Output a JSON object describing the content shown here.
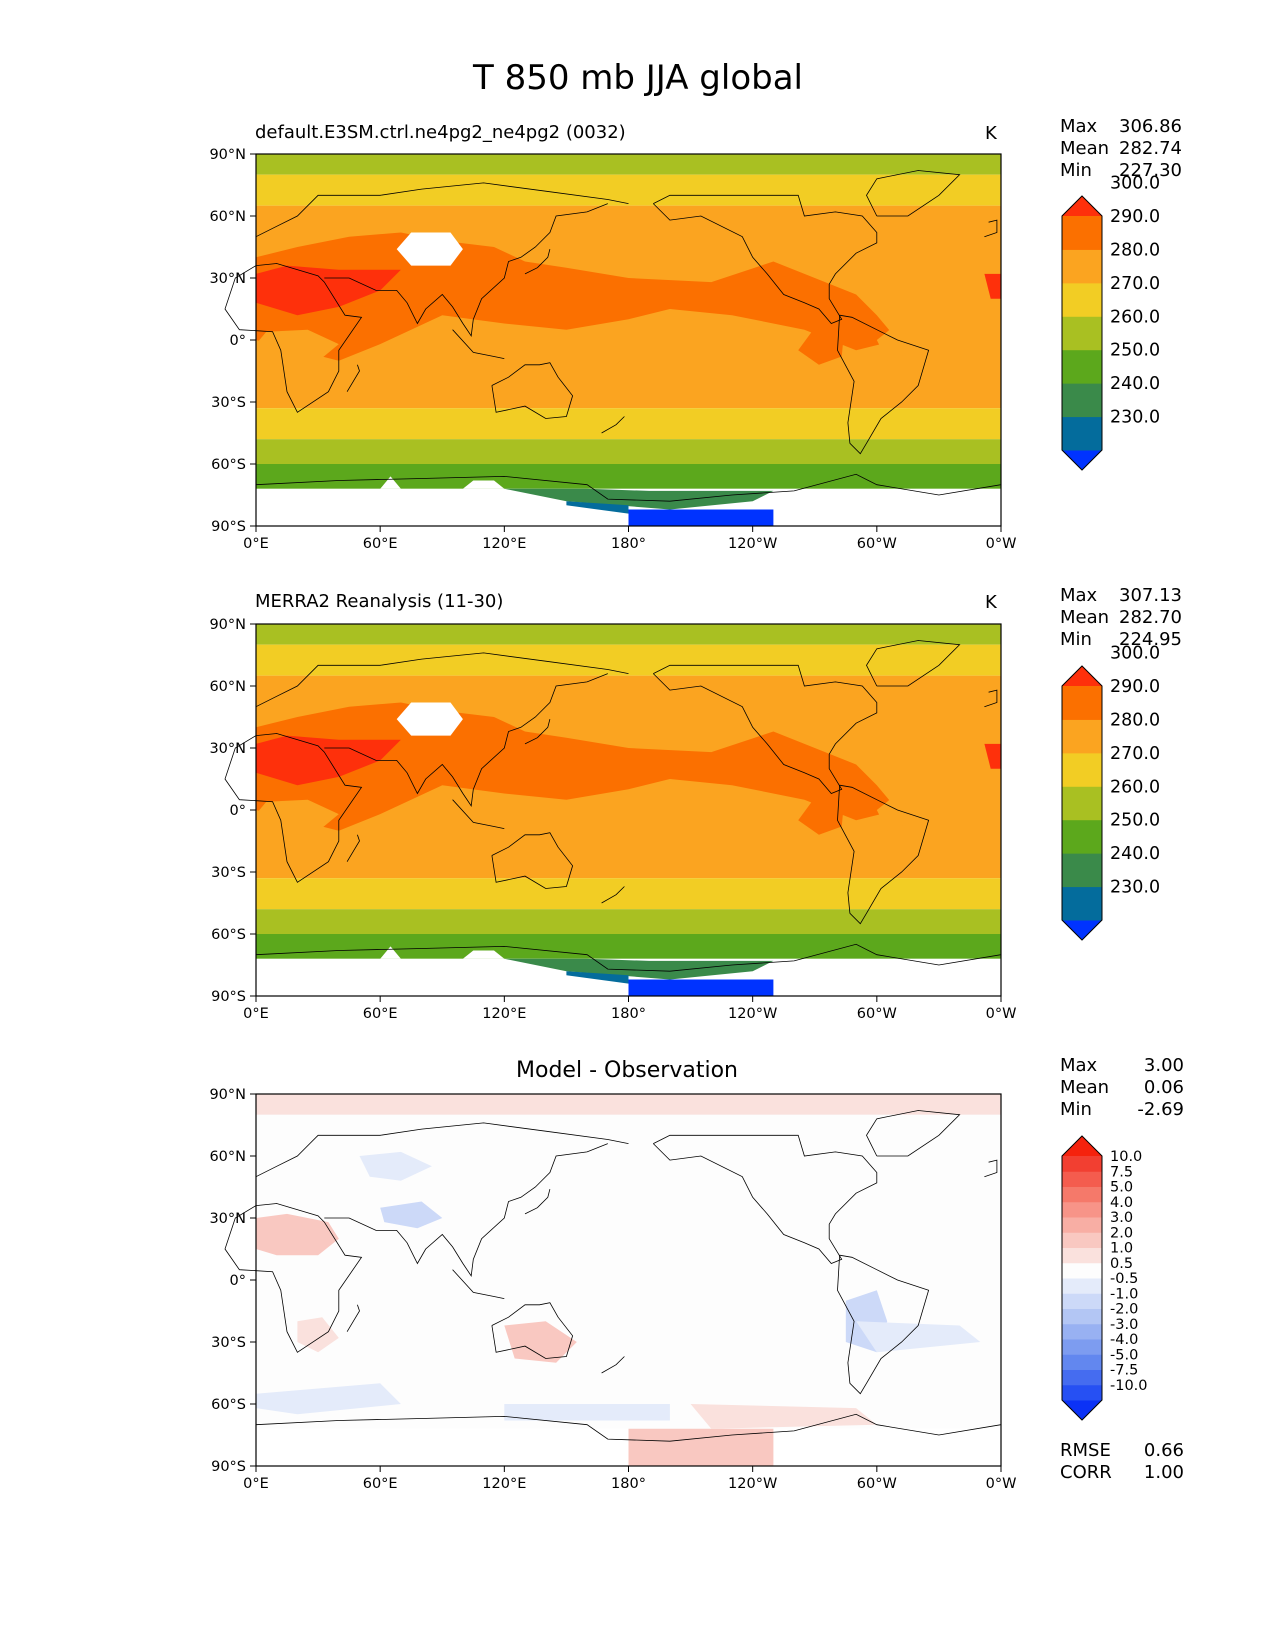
{
  "figure": {
    "title": "T 850 mb JJA global"
  },
  "panels": [
    {
      "id": "model",
      "left_title": "default.E3SM.ctrl.ne4pg2_ne4pg2 (0032)",
      "units": "K",
      "stats": [
        {
          "label": "Max",
          "value": "306.86"
        },
        {
          "label": "Mean",
          "value": "282.74"
        },
        {
          "label": "Min",
          "value": "227.30"
        }
      ],
      "colorbar": {
        "colors": [
          "#0033ff",
          "#046c9c",
          "#3a8a4a",
          "#5ca81c",
          "#a9c022",
          "#f2cd24",
          "#fba420",
          "#fb7000",
          "#fe300b"
        ],
        "labels": [
          "230.0",
          "240.0",
          "250.0",
          "260.0",
          "270.0",
          "280.0",
          "290.0",
          "300.0"
        ]
      }
    },
    {
      "id": "obs",
      "left_title": "MERRA2 Reanalysis (11-30)",
      "units": "K",
      "stats": [
        {
          "label": "Max",
          "value": "307.13"
        },
        {
          "label": "Mean",
          "value": "282.70"
        },
        {
          "label": "Min",
          "value": "224.95"
        }
      ],
      "colorbar": {
        "colors": [
          "#0033ff",
          "#046c9c",
          "#3a8a4a",
          "#5ca81c",
          "#a9c022",
          "#f2cd24",
          "#fba420",
          "#fb7000",
          "#fe300b"
        ],
        "labels": [
          "230.0",
          "240.0",
          "250.0",
          "260.0",
          "270.0",
          "280.0",
          "290.0",
          "300.0"
        ]
      }
    },
    {
      "id": "diff",
      "center_title": "Model - Observation",
      "stats": [
        {
          "label": "Max",
          "value": "3.00"
        },
        {
          "label": "Mean",
          "value": "0.06"
        },
        {
          "label": "Min",
          "value": "-2.69"
        }
      ],
      "extra_stats": [
        {
          "label": "RMSE",
          "value": "0.66"
        },
        {
          "label": "CORR",
          "value": "1.00"
        }
      ],
      "colorbar": {
        "colors": [
          "#0b32f6",
          "#2650f3",
          "#456cf0",
          "#6287ef",
          "#7d9cf0",
          "#98b1f2",
          "#b3c6f4",
          "#ccd9f8",
          "#e4ebfa",
          "#fdfdfd",
          "#fae1dd",
          "#f9c8c1",
          "#f8aea4",
          "#f79488",
          "#f5796a",
          "#f45c4e",
          "#f23f31",
          "#f5220d"
        ],
        "labels": [
          "-10.0",
          "-7.5",
          "-5.0",
          "-4.0",
          "-3.0",
          "-2.0",
          "-1.0",
          "-0.5",
          "0.5",
          "1.0",
          "2.0",
          "3.0",
          "4.0",
          "5.0",
          "7.5",
          "10.0"
        ]
      }
    }
  ],
  "map_axes": {
    "x_ticks": [
      "0°E",
      "60°E",
      "120°E",
      "180°",
      "120°W",
      "60°W",
      "0°W"
    ],
    "y_ticks": [
      "90°N",
      "60°N",
      "30°N",
      "0°",
      "30°S",
      "60°S",
      "90°S"
    ]
  },
  "colors": {
    "missing": "#ffffff",
    "coastline": "#000000"
  }
}
